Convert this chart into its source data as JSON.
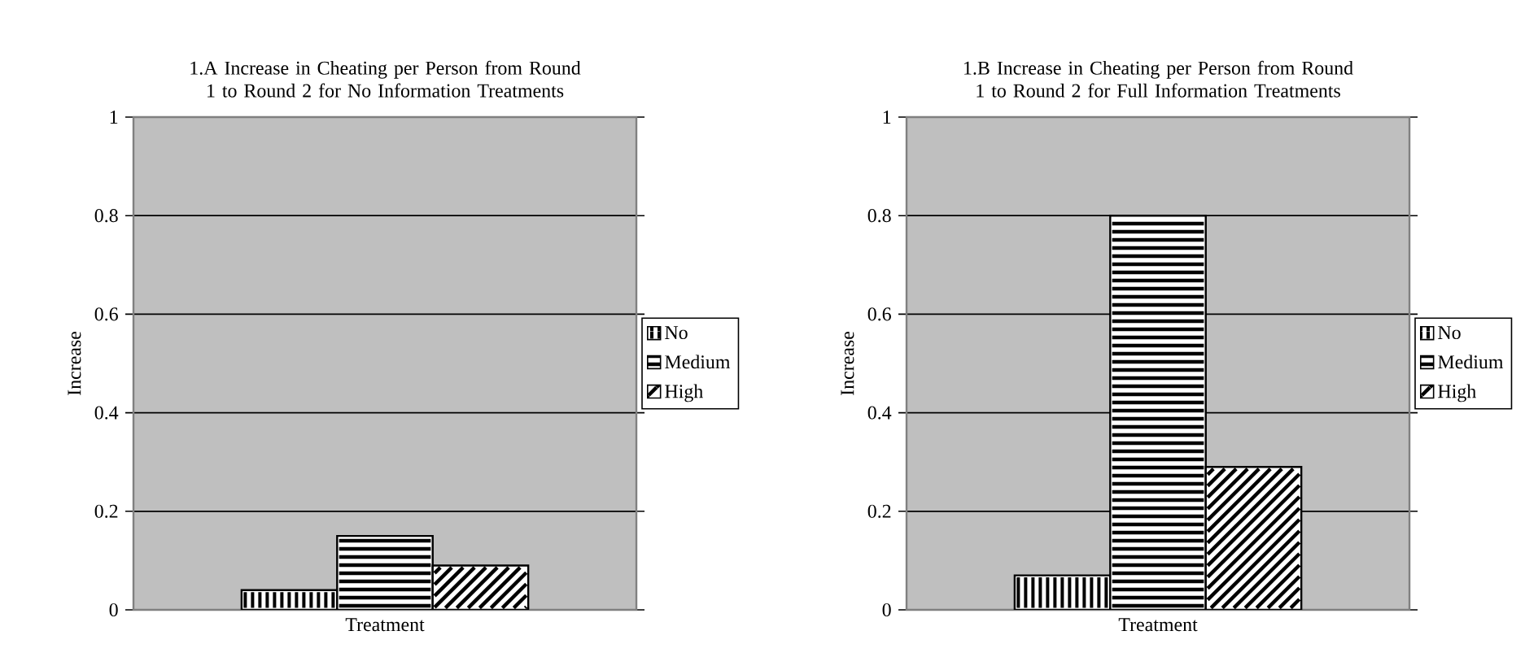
{
  "chart_data": [
    {
      "type": "bar",
      "title": "1.A Increase in Cheating per Person from Round 1 to Round 2 for No Information Treatments",
      "xlabel": "Treatment",
      "ylabel": "Increase",
      "categories": [
        null
      ],
      "series": [
        {
          "name": "No",
          "color": "#000000",
          "values": [
            0.04
          ]
        },
        {
          "name": "Medium",
          "color": "#000000",
          "values": [
            0.15
          ]
        },
        {
          "name": "High",
          "color": "#000000",
          "values": [
            0.09
          ]
        }
      ],
      "ylim": [
        0,
        1
      ],
      "yticks": [
        0,
        0.2,
        0.4,
        0.6,
        0.8,
        1
      ],
      "grid": "y",
      "legend": "right"
    },
    {
      "type": "bar",
      "title": "1.B Increase in Cheating per Person from Round 1 to Round 2 for Full Information Treatments",
      "xlabel": "Treatment",
      "ylabel": "Increase",
      "categories": [
        null
      ],
      "series": [
        {
          "name": "No",
          "color": "#000000",
          "values": [
            0.07
          ]
        },
        {
          "name": "Medium",
          "color": "#000000",
          "values": [
            0.8
          ]
        },
        {
          "name": "High",
          "color": "#000000",
          "values": [
            0.29
          ]
        }
      ],
      "ylim": [
        0,
        1
      ],
      "yticks": [
        0,
        0.2,
        0.4,
        0.6,
        0.8,
        1
      ],
      "grid": "y",
      "legend": "right"
    }
  ]
}
